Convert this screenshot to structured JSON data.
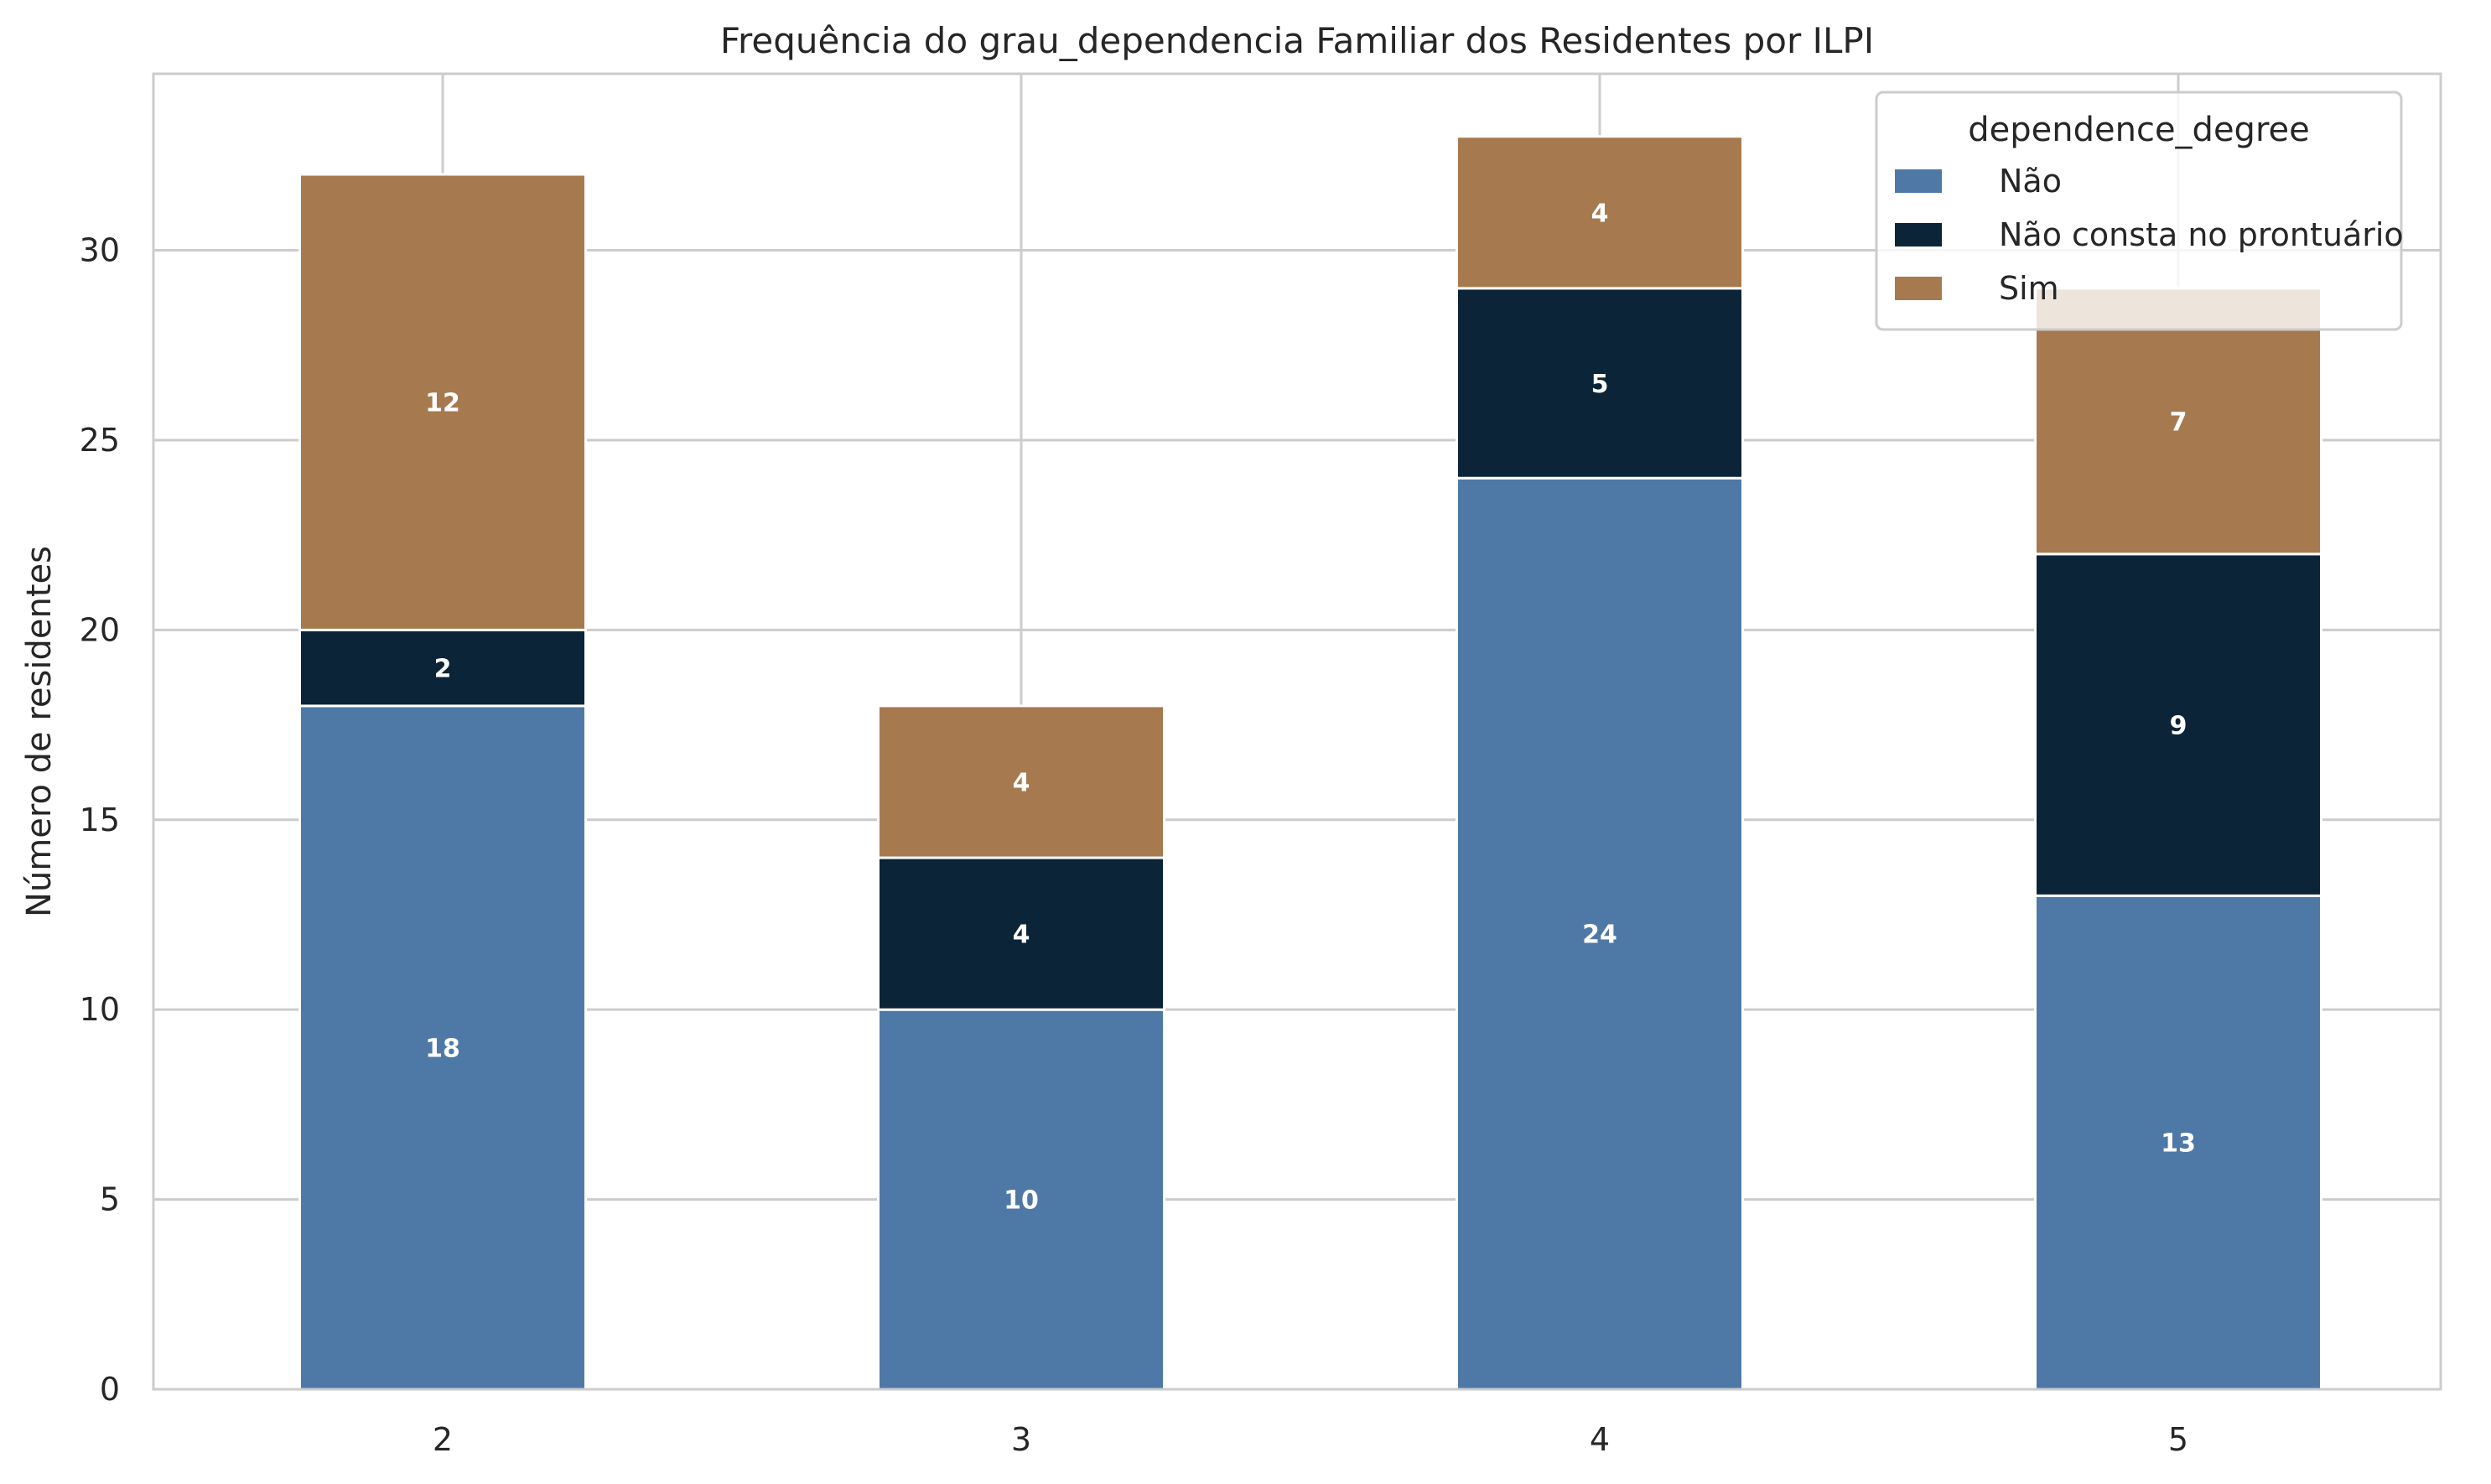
{
  "chart_data": {
    "type": "bar",
    "stacked": true,
    "title": "Frequência do grau_dependencia Familiar dos Residentes por ILPI",
    "xlabel": "",
    "ylabel": "Número de residentes",
    "categories": [
      "2",
      "3",
      "4",
      "5"
    ],
    "series": [
      {
        "name": "Não",
        "color": "#4e79a7",
        "values": [
          18,
          10,
          24,
          13
        ]
      },
      {
        "name": "Não consta no prontuário",
        "color": "#0b2438",
        "values": [
          2,
          4,
          5,
          9
        ]
      },
      {
        "name": "Sim",
        "color": "#a67a4e",
        "values": [
          12,
          4,
          4,
          7
        ]
      }
    ],
    "ylim": [
      0,
      34.65
    ],
    "yticks": [
      0,
      5,
      10,
      15,
      20,
      25,
      30
    ],
    "grid": true,
    "legend": {
      "title": "dependence_degree",
      "placement": "top-right"
    },
    "value_labels": true
  }
}
